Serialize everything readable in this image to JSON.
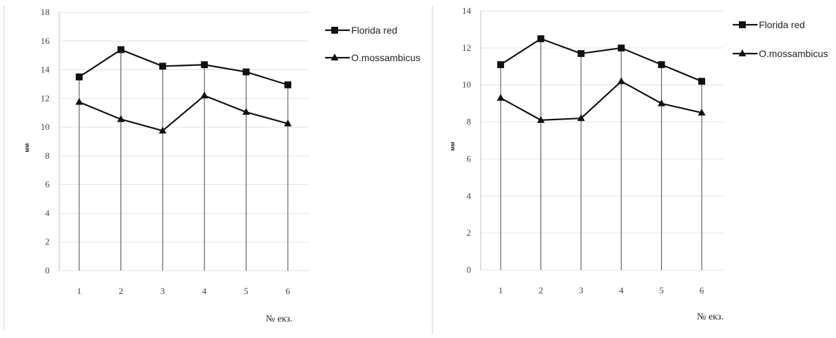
{
  "chart_data": [
    {
      "type": "line",
      "title": "",
      "xlabel": "№ екз.",
      "ylabel": "мм",
      "categories": [
        "1",
        "2",
        "3",
        "4",
        "5",
        "6"
      ],
      "ylim": [
        0,
        18
      ],
      "yticks": [
        "0",
        "2",
        "4",
        "6",
        "8",
        "10",
        "12",
        "14",
        "16",
        "18"
      ],
      "grid": "horizontal",
      "drop_lines": true,
      "legend_position": "top-right",
      "series": [
        {
          "name": "Florida red",
          "marker": "square",
          "values": [
            13.5,
            15.4,
            14.25,
            14.35,
            13.85,
            12.95
          ]
        },
        {
          "name": "O.mossambicus",
          "marker": "triangle",
          "values": [
            11.75,
            10.55,
            9.75,
            12.2,
            11.05,
            10.25
          ]
        }
      ]
    },
    {
      "type": "line",
      "title": "",
      "xlabel": "№ екз.",
      "ylabel": "мм",
      "categories": [
        "1",
        "2",
        "3",
        "4",
        "5",
        "6"
      ],
      "ylim": [
        0,
        14
      ],
      "yticks": [
        "0",
        "2",
        "4",
        "6",
        "8",
        "10",
        "12",
        "14"
      ],
      "grid": "horizontal",
      "drop_lines": true,
      "legend_position": "top-right",
      "series": [
        {
          "name": "Florida red",
          "marker": "square",
          "values": [
            11.1,
            12.5,
            11.7,
            12.0,
            11.1,
            10.2
          ]
        },
        {
          "name": "O.mossambicus",
          "marker": "triangle",
          "values": [
            9.3,
            8.1,
            8.2,
            10.2,
            9.0,
            8.5
          ]
        }
      ]
    }
  ],
  "colors": {
    "line": "#111111",
    "grid": "#e2e2e2",
    "axis": "#bfbfbf",
    "drop_line": "#444444",
    "divider": "#cccccc"
  }
}
